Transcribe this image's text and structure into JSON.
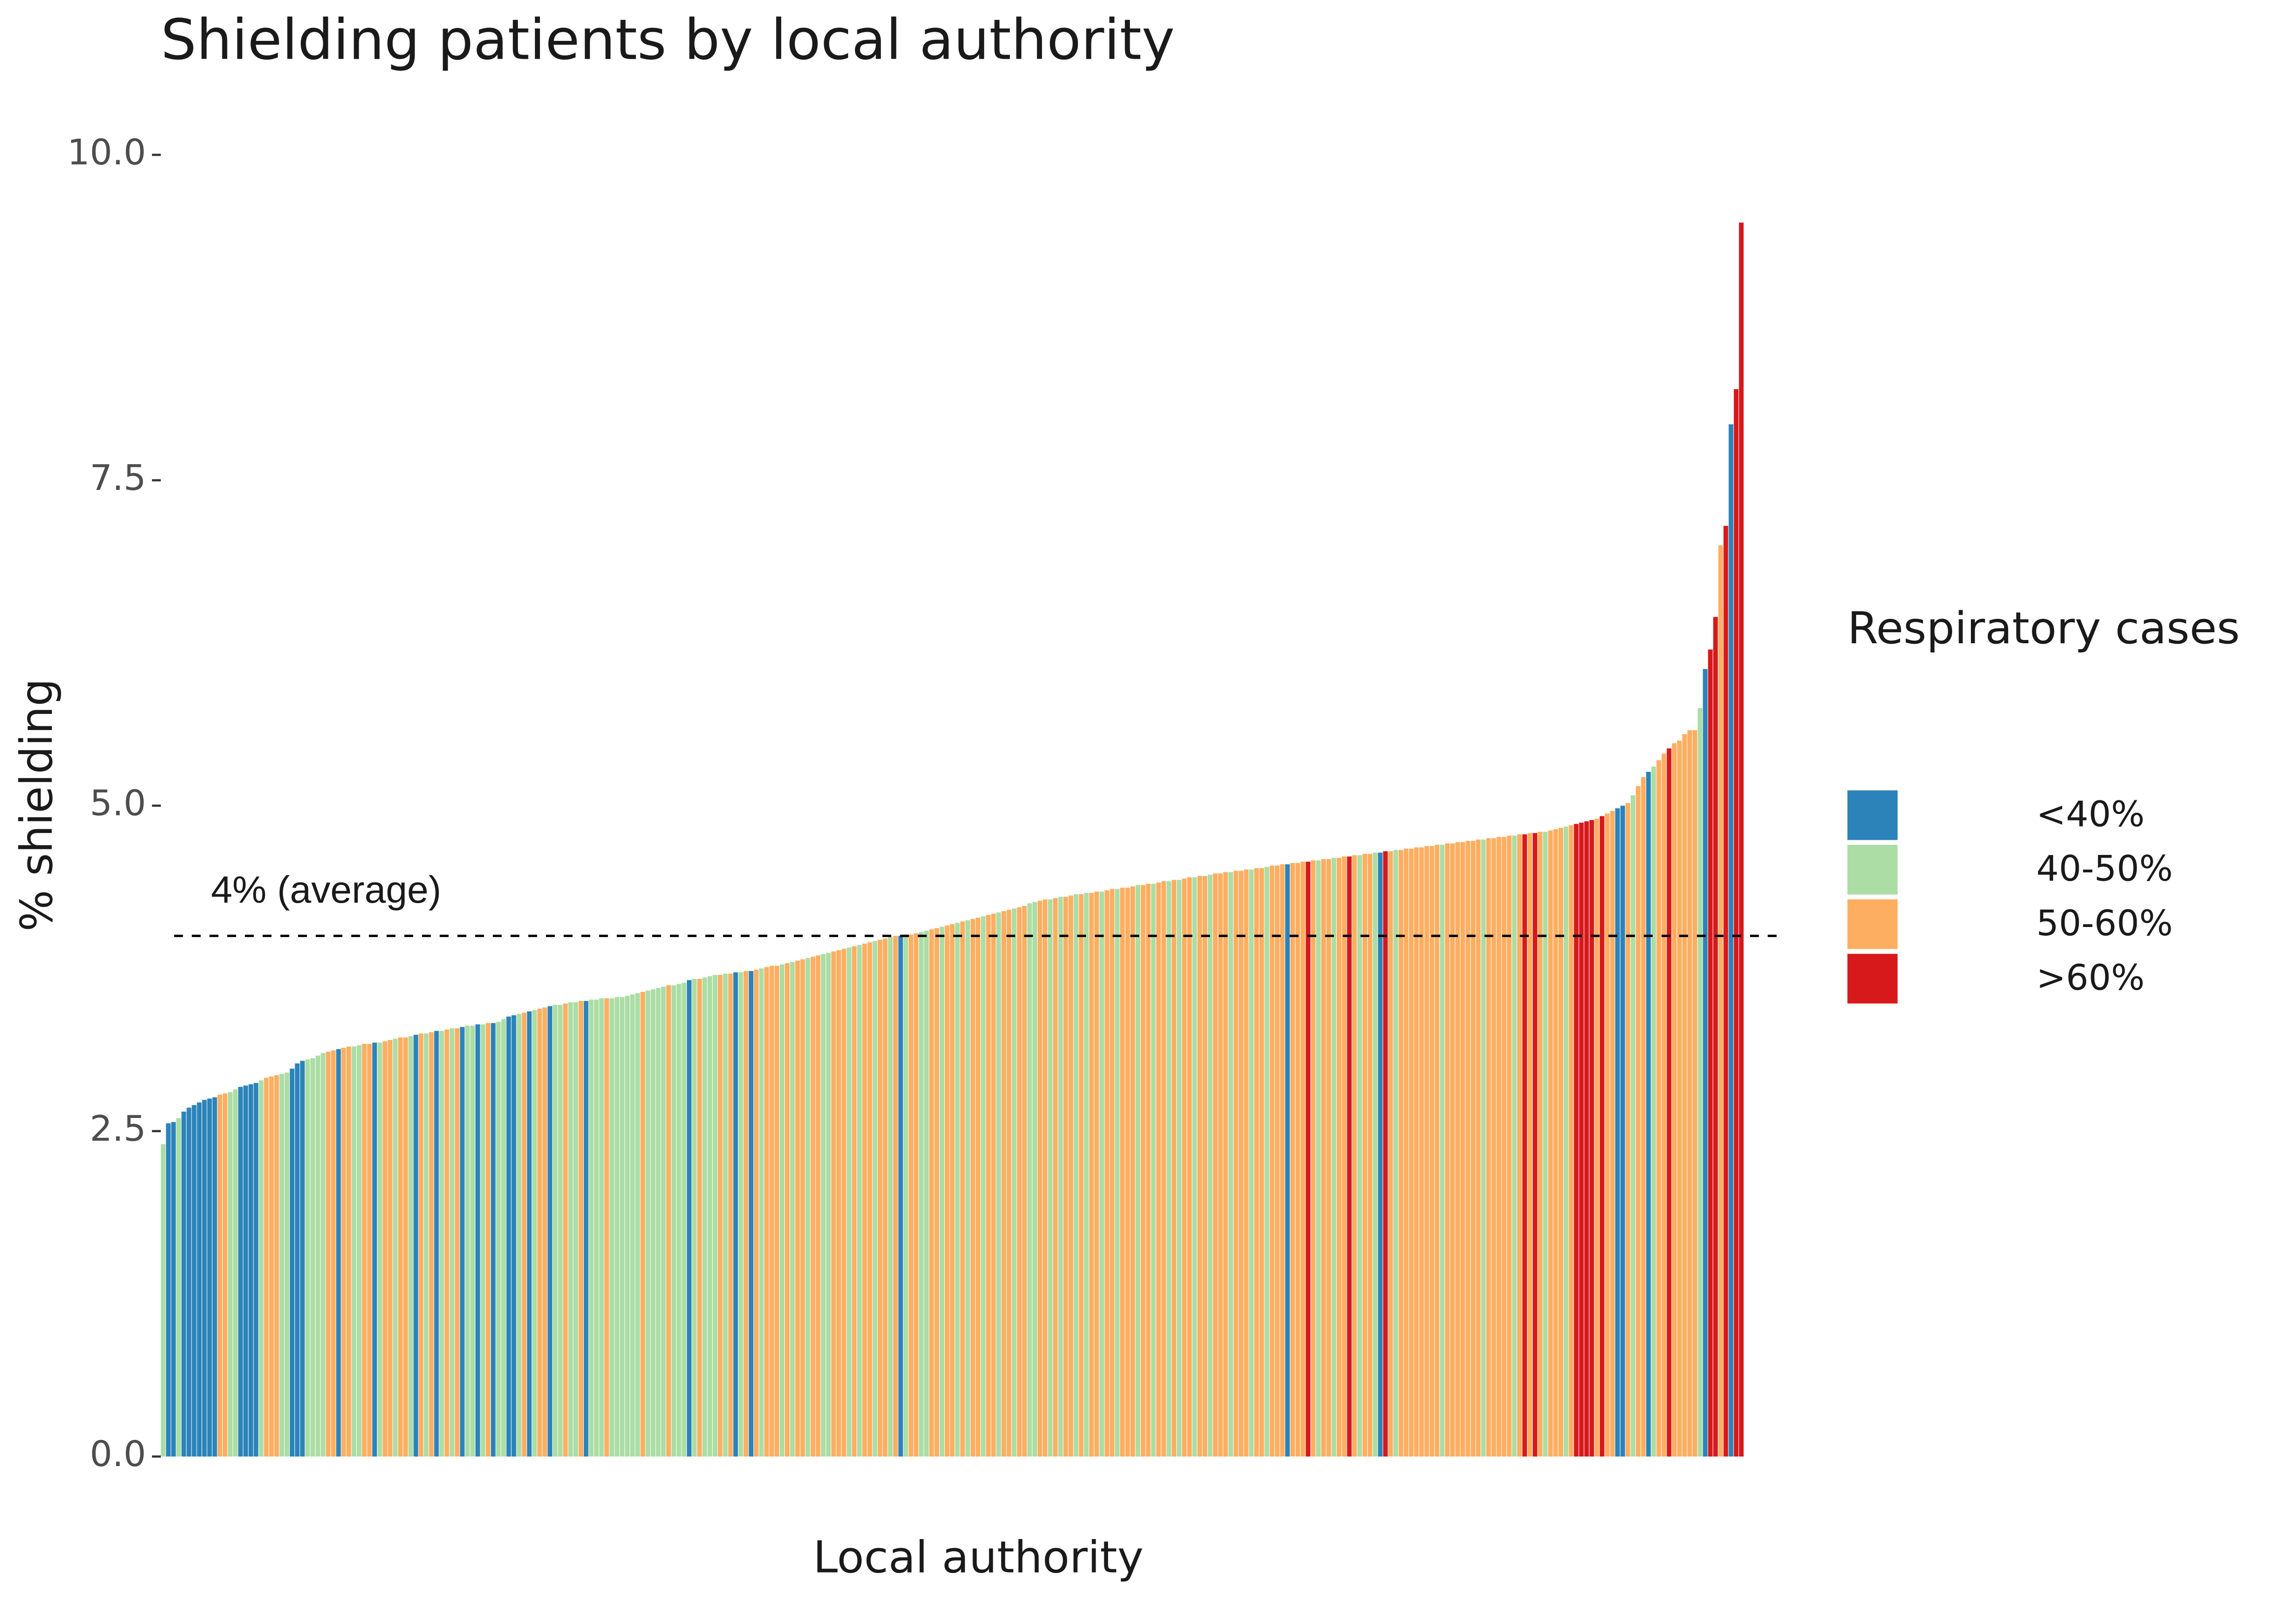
{
  "chart_data": {
    "type": "bar",
    "title": "Shielding patients by local authority",
    "x_label": "Local authority",
    "y_label": "% shielding",
    "ylim": [
      0,
      10
    ],
    "yticks": [
      {
        "value": 0,
        "label": "0.0"
      },
      {
        "value": 2.5,
        "label": "2.5"
      },
      {
        "value": 5,
        "label": "5.0"
      },
      {
        "value": 7.5,
        "label": "7.5"
      },
      {
        "value": 10,
        "label": "10.0"
      }
    ],
    "grid": false,
    "legend": {
      "title": "Respiratory cases",
      "position": "right",
      "labels": [
        "<40%",
        "40-50%",
        "50-60%",
        ">60%"
      ],
      "colors": [
        "#2b83ba",
        "#abdda4",
        "#fdae61",
        "#d7191c"
      ]
    },
    "annotation": {
      "text": "4% (average)",
      "value": 4
    },
    "values": [
      2.4,
      2.56,
      2.57,
      2.6,
      2.65,
      2.68,
      2.7,
      2.72,
      2.74,
      2.75,
      2.76,
      2.78,
      2.79,
      2.8,
      2.82,
      2.84,
      2.85,
      2.86,
      2.87,
      2.89,
      2.91,
      2.92,
      2.93,
      2.94,
      2.95,
      2.98,
      3.02,
      3.04,
      3.05,
      3.06,
      3.08,
      3.1,
      3.11,
      3.12,
      3.13,
      3.14,
      3.15,
      3.15,
      3.16,
      3.17,
      3.17,
      3.18,
      3.18,
      3.19,
      3.2,
      3.21,
      3.22,
      3.22,
      3.23,
      3.24,
      3.25,
      3.25,
      3.26,
      3.27,
      3.27,
      3.28,
      3.29,
      3.29,
      3.3,
      3.31,
      3.31,
      3.32,
      3.32,
      3.33,
      3.33,
      3.34,
      3.36,
      3.38,
      3.39,
      3.4,
      3.41,
      3.42,
      3.43,
      3.44,
      3.45,
      3.46,
      3.47,
      3.47,
      3.48,
      3.49,
      3.49,
      3.5,
      3.5,
      3.51,
      3.51,
      3.52,
      3.52,
      3.52,
      3.53,
      3.53,
      3.54,
      3.55,
      3.56,
      3.57,
      3.58,
      3.59,
      3.6,
      3.61,
      3.62,
      3.62,
      3.63,
      3.64,
      3.66,
      3.67,
      3.67,
      3.68,
      3.69,
      3.7,
      3.7,
      3.71,
      3.71,
      3.72,
      3.72,
      3.73,
      3.73,
      3.74,
      3.75,
      3.76,
      3.77,
      3.77,
      3.78,
      3.79,
      3.8,
      3.81,
      3.82,
      3.83,
      3.84,
      3.85,
      3.86,
      3.87,
      3.88,
      3.89,
      3.9,
      3.91,
      3.92,
      3.93,
      3.94,
      3.95,
      3.96,
      3.97,
      3.98,
      3.99,
      4.0,
      4.0,
      4.01,
      4.01,
      4.02,
      4.03,
      4.04,
      4.05,
      4.06,
      4.07,
      4.08,
      4.09,
      4.1,
      4.11,
      4.12,
      4.13,
      4.14,
      4.15,
      4.16,
      4.17,
      4.18,
      4.19,
      4.2,
      4.21,
      4.22,
      4.23,
      4.25,
      4.26,
      4.27,
      4.28,
      4.28,
      4.29,
      4.3,
      4.3,
      4.31,
      4.32,
      4.32,
      4.33,
      4.33,
      4.34,
      4.34,
      4.35,
      4.36,
      4.36,
      4.37,
      4.37,
      4.38,
      4.39,
      4.39,
      4.4,
      4.4,
      4.41,
      4.42,
      4.42,
      4.43,
      4.43,
      4.44,
      4.45,
      4.45,
      4.46,
      4.46,
      4.47,
      4.48,
      4.48,
      4.49,
      4.49,
      4.5,
      4.5,
      4.51,
      4.51,
      4.52,
      4.52,
      4.53,
      4.54,
      4.54,
      4.55,
      4.55,
      4.56,
      4.56,
      4.57,
      4.57,
      4.58,
      4.58,
      4.59,
      4.59,
      4.6,
      4.6,
      4.61,
      4.61,
      4.62,
      4.62,
      4.63,
      4.63,
      4.64,
      4.64,
      4.65,
      4.65,
      4.66,
      4.66,
      4.67,
      4.67,
      4.68,
      4.68,
      4.69,
      4.69,
      4.7,
      4.7,
      4.71,
      4.71,
      4.72,
      4.72,
      4.73,
      4.73,
      4.74,
      4.74,
      4.75,
      4.75,
      4.76,
      4.76,
      4.77,
      4.77,
      4.78,
      4.78,
      4.79,
      4.79,
      4.8,
      4.8,
      4.81,
      4.82,
      4.83,
      4.84,
      4.85,
      4.86,
      4.87,
      4.88,
      4.89,
      4.9,
      4.92,
      4.94,
      4.96,
      4.98,
      5.0,
      5.02,
      5.08,
      5.15,
      5.22,
      5.26,
      5.3,
      5.35,
      5.4,
      5.44,
      5.48,
      5.5,
      5.55,
      5.58,
      5.58,
      5.75,
      6.05,
      6.2,
      6.45,
      7.0,
      7.15,
      7.93,
      8.2,
      9.48
    ],
    "groups": [
      1,
      0,
      0,
      1,
      0,
      0,
      0,
      0,
      0,
      0,
      0,
      2,
      2,
      1,
      1,
      0,
      0,
      0,
      0,
      1,
      2,
      2,
      2,
      1,
      1,
      0,
      0,
      0,
      1,
      1,
      1,
      1,
      2,
      2,
      0,
      2,
      2,
      1,
      1,
      2,
      2,
      0,
      1,
      2,
      2,
      1,
      2,
      2,
      1,
      0,
      2,
      1,
      2,
      0,
      1,
      2,
      1,
      2,
      0,
      1,
      1,
      0,
      1,
      2,
      0,
      1,
      1,
      0,
      0,
      1,
      2,
      0,
      1,
      2,
      2,
      0,
      1,
      1,
      2,
      1,
      1,
      2,
      0,
      1,
      1,
      1,
      2,
      1,
      1,
      1,
      1,
      1,
      1,
      2,
      1,
      1,
      1,
      1,
      2,
      1,
      1,
      1,
      0,
      1,
      2,
      1,
      1,
      1,
      2,
      1,
      2,
      0,
      1,
      2,
      0,
      2,
      1,
      2,
      2,
      2,
      1,
      2,
      1,
      2,
      2,
      1,
      2,
      2,
      1,
      1,
      2,
      2,
      2,
      1,
      2,
      1,
      2,
      2,
      1,
      2,
      2,
      1,
      2,
      0,
      1,
      2,
      2,
      1,
      1,
      2,
      2,
      1,
      2,
      2,
      1,
      2,
      1,
      2,
      2,
      1,
      2,
      2,
      1,
      2,
      2,
      1,
      2,
      2,
      1,
      1,
      2,
      2,
      1,
      2,
      1,
      2,
      2,
      1,
      2,
      1,
      2,
      2,
      1,
      2,
      2,
      1,
      2,
      2,
      2,
      1,
      2,
      2,
      1,
      2,
      2,
      1,
      2,
      1,
      2,
      2,
      1,
      2,
      2,
      1,
      2,
      2,
      2,
      1,
      2,
      2,
      2,
      1,
      2,
      2,
      1,
      2,
      2,
      2,
      0,
      2,
      2,
      2,
      3,
      2,
      1,
      2,
      2,
      1,
      2,
      2,
      3,
      2,
      1,
      2,
      2,
      1,
      0,
      3,
      2,
      1,
      2,
      2,
      2,
      2,
      2,
      2,
      2,
      2,
      1,
      2,
      2,
      2,
      2,
      2,
      2,
      2,
      1,
      2,
      2,
      2,
      2,
      2,
      1,
      2,
      3,
      2,
      3,
      2,
      1,
      2,
      2,
      2,
      1,
      2,
      3,
      3,
      3,
      3,
      2,
      3,
      2,
      2,
      0,
      0,
      2,
      1,
      2,
      2,
      0,
      1,
      2,
      2,
      3,
      2,
      2,
      2,
      2,
      2,
      1,
      0,
      3,
      3,
      2,
      3,
      0,
      3,
      3
    ]
  }
}
